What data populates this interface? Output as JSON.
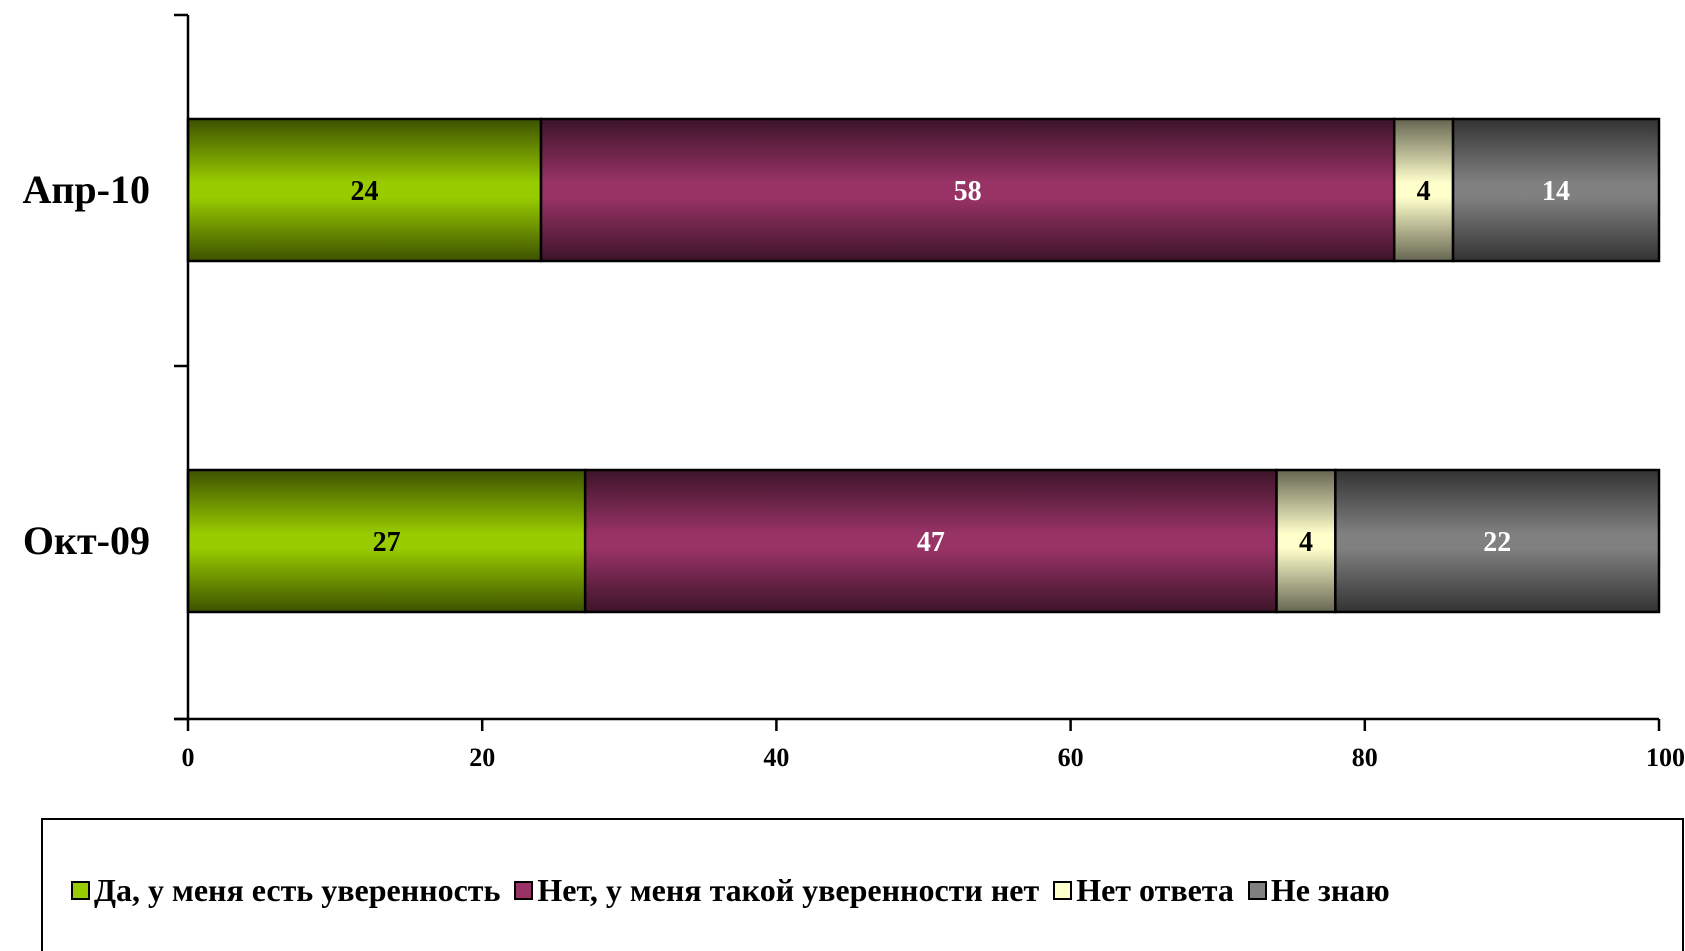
{
  "chart_data": {
    "type": "bar",
    "orientation": "horizontal",
    "stacked": true,
    "categories": [
      "Апр-10",
      "Окт-09"
    ],
    "series": [
      {
        "name": "Да, у меня есть уверенность",
        "values": [
          24,
          27
        ],
        "color": "#99cc00",
        "label_color": "#000000"
      },
      {
        "name": "Нет, у меня такой уверенности нет",
        "values": [
          58,
          47
        ],
        "color": "#993366",
        "label_color": "#ffffff"
      },
      {
        "name": "Нет ответа",
        "values": [
          4,
          4
        ],
        "color": "#ffffcc",
        "label_color": "#000000"
      },
      {
        "name": "Не знаю",
        "values": [
          14,
          22
        ],
        "color": "#808080",
        "label_color": "#ffffff"
      }
    ],
    "xlim": [
      0,
      100
    ],
    "xticks": [
      0,
      20,
      40,
      60,
      80,
      100
    ],
    "xlabel": "",
    "ylabel": "",
    "title": "",
    "grid": false,
    "legend_position": "bottom"
  }
}
